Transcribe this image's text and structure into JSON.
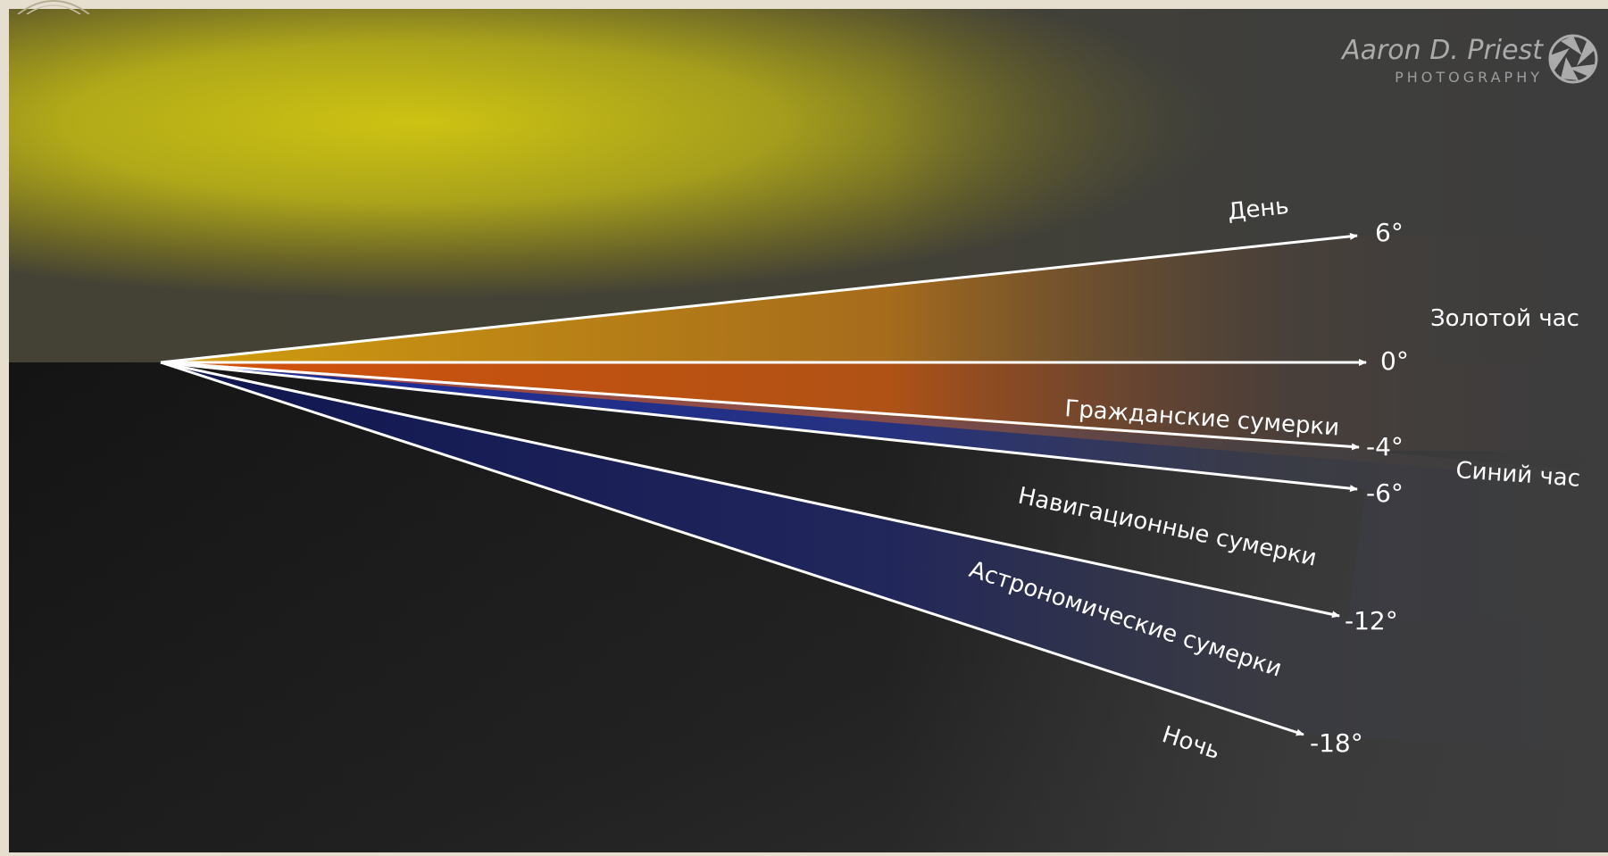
{
  "watermark": {
    "name": "Aaron D. Priest",
    "subtitle": "PHOTOGRAPHY",
    "logo_icon": "camera-aperture-icon"
  },
  "elevation_lines": [
    {
      "id": "day",
      "degree_label": "6°",
      "zone_label": "День"
    },
    {
      "id": "horizon",
      "degree_label": "0°",
      "zone_label": ""
    },
    {
      "id": "civil",
      "degree_label": "-4°",
      "zone_label": "Гражданские сумерки"
    },
    {
      "id": "blue",
      "degree_label": "-6°",
      "zone_label": ""
    },
    {
      "id": "nautical",
      "degree_label": "-12°",
      "zone_label": "Навигационные сумерки"
    },
    {
      "id": "astronomical",
      "degree_label": "-18°",
      "zone_label": "Астрономические сумерки"
    }
  ],
  "zone_labels": {
    "golden_hour": "Золотой час",
    "blue_hour": "Синий час",
    "night": "Ночь"
  },
  "colors": {
    "sky_yellow": "#d4c80f",
    "golden_orange": "#c8580a",
    "blue_hour": "#1a2a88",
    "night": "#121212",
    "background_gray": "#3a3a3a",
    "line": "#ffffff"
  }
}
